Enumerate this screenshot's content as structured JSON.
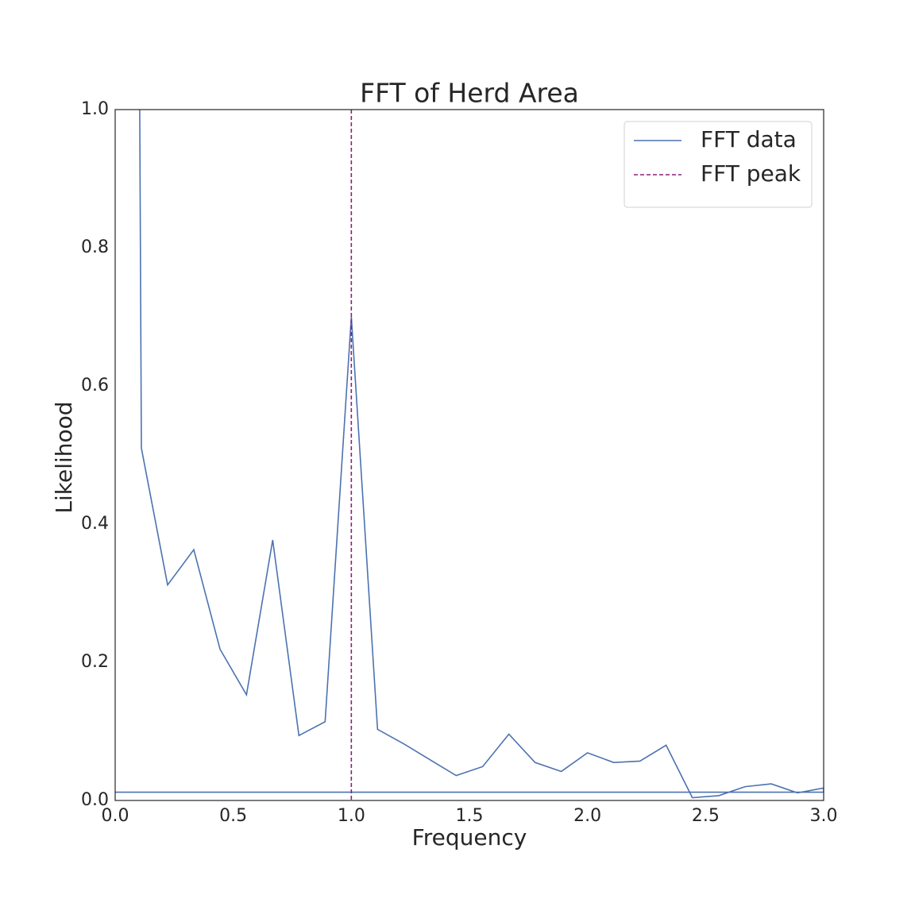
{
  "chart_data": {
    "type": "line",
    "title": "FFT of Herd Area",
    "x_label": "Frequency",
    "y_label": "Likelihood",
    "series": [
      {
        "name": "FFT data",
        "color": "#4c72b0",
        "x": [
          0.104,
          0.111,
          0.222,
          0.333,
          0.444,
          0.556,
          0.667,
          0.778,
          0.889,
          1.0,
          1.111,
          1.222,
          1.333,
          1.444,
          1.556,
          1.667,
          1.778,
          1.889,
          2.0,
          2.111,
          2.222,
          2.333,
          2.444,
          2.556,
          2.667,
          2.778,
          2.889,
          3.0,
          3.0,
          0.0
        ],
        "values": [
          1.0,
          0.51,
          0.312,
          0.363,
          0.219,
          0.153,
          0.377,
          0.094,
          0.114,
          0.7,
          0.103,
          0.082,
          0.059,
          0.036,
          0.049,
          0.096,
          0.055,
          0.042,
          0.069,
          0.055,
          0.057,
          0.08,
          0.004,
          0.007,
          0.02,
          0.024,
          0.011,
          0.018,
          0.012,
          0.012
        ]
      }
    ],
    "vlines": [
      {
        "name": "FFT peak",
        "color": "#8e1f7e",
        "x": 1.0,
        "dashed": true
      }
    ],
    "xlim": [
      0,
      3
    ],
    "ylim": [
      0,
      1
    ],
    "xticks": [
      {
        "value": 0,
        "label": "0.0"
      },
      0.5,
      {
        "value": 1,
        "label": "1.0"
      },
      1.5,
      {
        "value": 2,
        "label": "2.0"
      },
      2.5,
      {
        "value": 3,
        "label": "3.0"
      }
    ],
    "yticks": [
      {
        "value": 0,
        "label": "0.0"
      },
      0.2,
      0.4,
      0.6,
      0.8,
      {
        "value": 1,
        "label": "1.0"
      }
    ],
    "legend": "upper right",
    "grid": false
  }
}
